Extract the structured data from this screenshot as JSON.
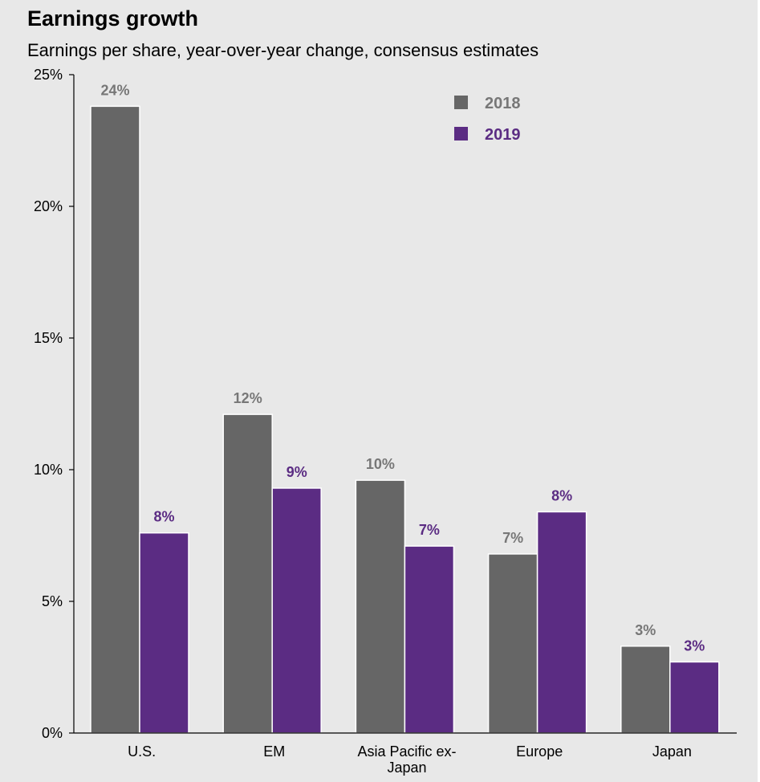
{
  "chart_data": {
    "type": "bar",
    "title": "Earnings growth",
    "subtitle": "Earnings per share, year-over-year  change, consensus estimates",
    "xlabel": "",
    "ylabel": "",
    "ylim": [
      0,
      25
    ],
    "yticks": [
      0,
      5,
      10,
      15,
      20,
      25
    ],
    "ytick_labels": [
      "0%",
      "5%",
      "10%",
      "15%",
      "20%",
      "25%"
    ],
    "categories": [
      "U.S.",
      "EM",
      "Asia Pacific ex-Japan",
      "Europe",
      "Japan"
    ],
    "category_label_lines": [
      [
        "U.S."
      ],
      [
        "EM"
      ],
      [
        "Asia Pacific ex-",
        "Japan"
      ],
      [
        "Europe"
      ],
      [
        "Japan"
      ]
    ],
    "series": [
      {
        "name": "2018",
        "color": "#666666",
        "values": [
          23.8,
          12.1,
          9.6,
          6.8,
          3.3
        ],
        "labels": [
          "24%",
          "12%",
          "10%",
          "7%",
          "3%"
        ]
      },
      {
        "name": "2019",
        "color": "#5b2c83",
        "values": [
          7.6,
          9.3,
          7.1,
          8.4,
          2.7
        ],
        "labels": [
          "8%",
          "9%",
          "7%",
          "8%",
          "3%"
        ]
      }
    ],
    "grid": false,
    "legend": "top-right"
  }
}
